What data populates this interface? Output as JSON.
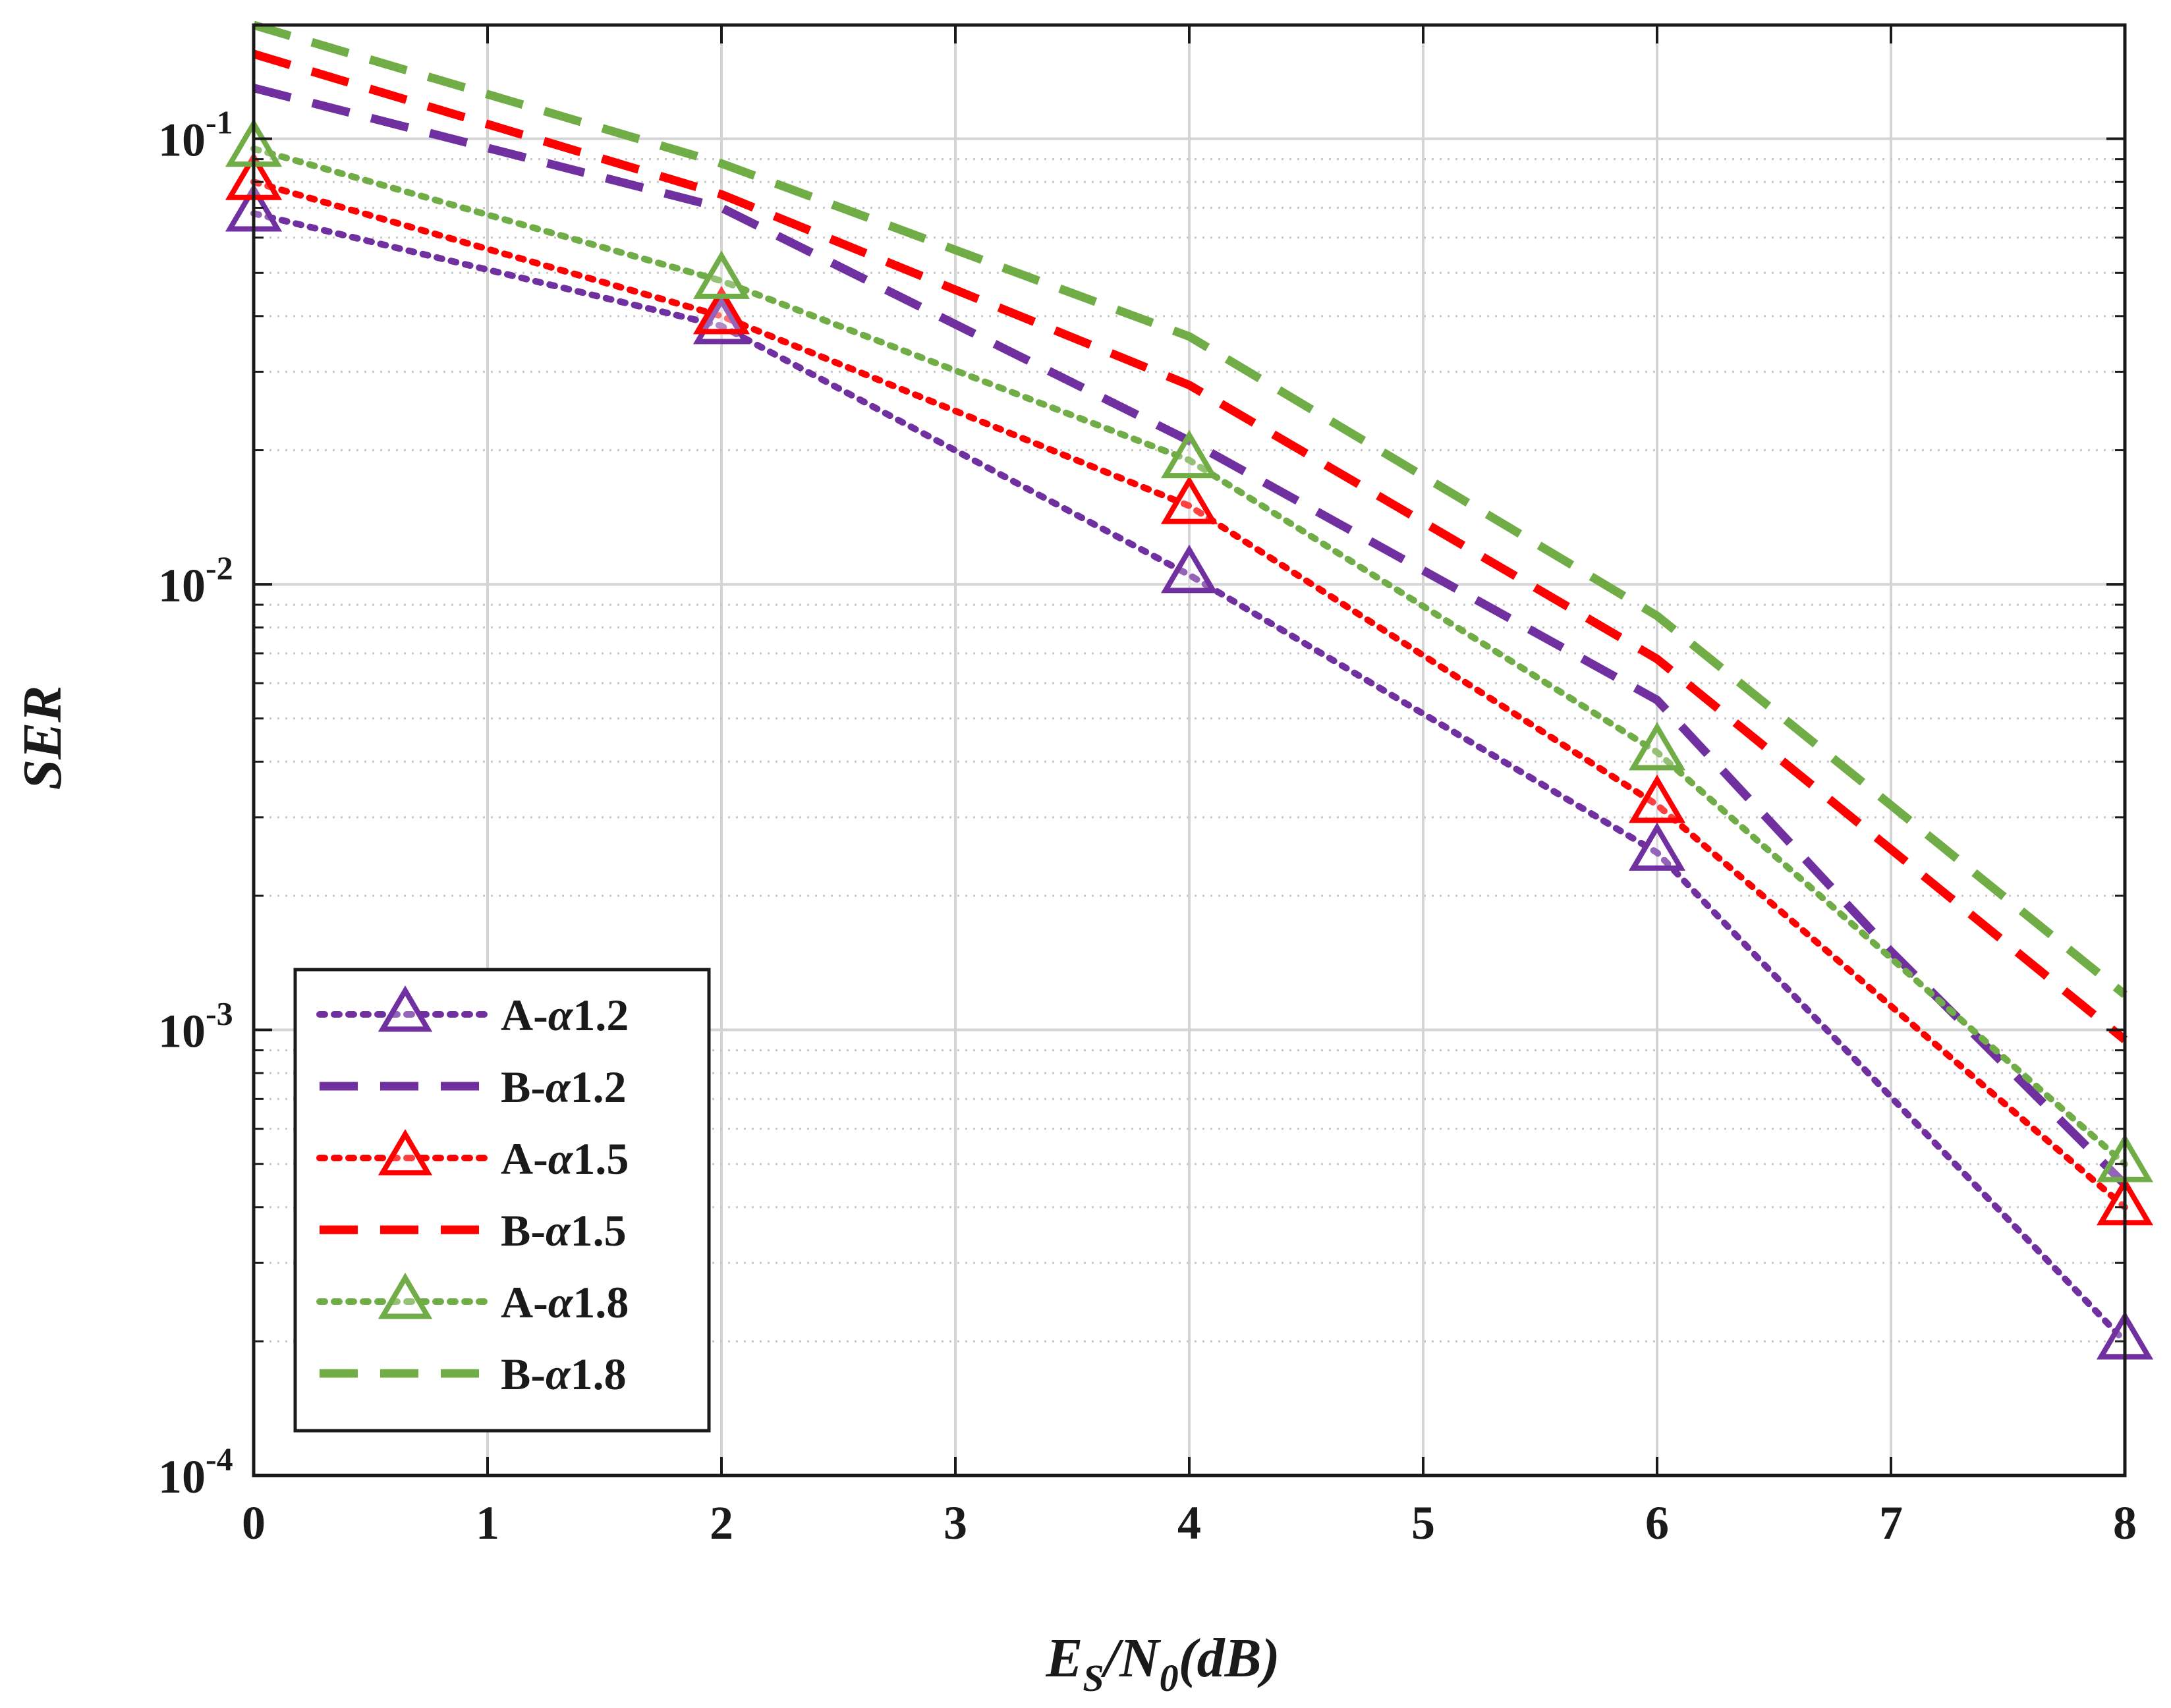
{
  "chart_data": {
    "type": "line",
    "yscale": "log",
    "xlabel": {
      "main": "E",
      "sub1": "S",
      "mid": "/N",
      "sub2": "0",
      "tail": "(dB)"
    },
    "ylabel": "SER",
    "xlim": [
      0,
      8
    ],
    "ylim": [
      0.0001,
      0.18
    ],
    "x_ticks": [
      {
        "value": 0,
        "label": "0"
      },
      {
        "value": 1,
        "label": "1"
      },
      {
        "value": 2,
        "label": "2"
      },
      {
        "value": 3,
        "label": "3"
      },
      {
        "value": 4,
        "label": "4"
      },
      {
        "value": 5,
        "label": "5"
      },
      {
        "value": 6,
        "label": "6"
      },
      {
        "value": 7,
        "label": "7"
      },
      {
        "value": 8,
        "label": "8"
      }
    ],
    "y_ticks": [
      {
        "value": 0.1,
        "base": "10",
        "exp": "-1"
      },
      {
        "value": 0.01,
        "base": "10",
        "exp": "-2"
      },
      {
        "value": 0.001,
        "base": "10",
        "exp": "-3"
      },
      {
        "value": 0.0001,
        "base": "10",
        "exp": "-4"
      }
    ],
    "grid": true,
    "legend_position": "bottom-left",
    "series": [
      {
        "name": "A-α1.2",
        "prefix": "A-",
        "greek": "α",
        "suffix": "1.2",
        "color": "#7030A0",
        "style": "dotted",
        "marker": "triangle",
        "x": [
          0,
          2,
          4,
          6,
          8
        ],
        "values": [
          0.068,
          0.038,
          0.0105,
          0.0025,
          0.0002
        ]
      },
      {
        "name": "B-α1.2",
        "prefix": "B-",
        "greek": "α",
        "suffix": "1.2",
        "color": "#7030A0",
        "style": "dashed",
        "marker": "none",
        "x": [
          0,
          2,
          4,
          6,
          7,
          8
        ],
        "values": [
          0.13,
          0.07,
          0.021,
          0.0055,
          0.0015,
          0.00045
        ]
      },
      {
        "name": "A-α1.5",
        "prefix": "A-",
        "greek": "α",
        "suffix": "1.5",
        "color": "#FF0000",
        "style": "dotted",
        "marker": "triangle",
        "x": [
          0,
          2,
          4,
          6,
          8
        ],
        "values": [
          0.08,
          0.04,
          0.015,
          0.0032,
          0.0004
        ]
      },
      {
        "name": "B-α1.5",
        "prefix": "B-",
        "greek": "α",
        "suffix": "1.5",
        "color": "#FF0000",
        "style": "dashed",
        "marker": "none",
        "x": [
          0,
          2,
          4,
          6,
          8
        ],
        "values": [
          0.155,
          0.075,
          0.028,
          0.0068,
          0.00095
        ]
      },
      {
        "name": "A-α1.8",
        "prefix": "A-",
        "greek": "α",
        "suffix": "1.8",
        "color": "#70AD47",
        "style": "dotted",
        "marker": "triangle",
        "x": [
          0,
          2,
          4,
          6,
          8
        ],
        "values": [
          0.095,
          0.048,
          0.019,
          0.0042,
          0.0005
        ]
      },
      {
        "name": "B-α1.8",
        "prefix": "B-",
        "greek": "α",
        "suffix": "1.8",
        "color": "#70AD47",
        "style": "dashed",
        "marker": "none",
        "x": [
          0,
          2,
          4,
          6,
          8
        ],
        "values": [
          0.18,
          0.088,
          0.036,
          0.0085,
          0.0012
        ]
      }
    ]
  }
}
